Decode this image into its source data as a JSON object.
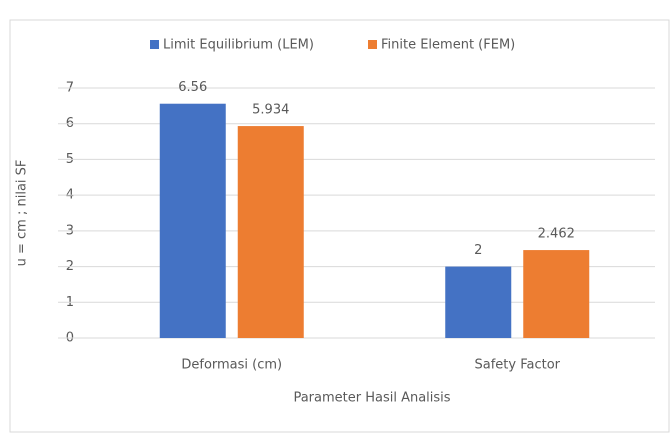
{
  "chart_data": {
    "type": "bar",
    "categories": [
      "Deformasi (cm)",
      "Safety Factor"
    ],
    "series": [
      {
        "name": "Limit Equilibrium (LEM)",
        "color": "#4472c4",
        "values": [
          6.56,
          2
        ]
      },
      {
        "name": "Finite Element (FEM)",
        "color": "#ed7d31",
        "values": [
          5.934,
          2.462
        ]
      }
    ],
    "xlabel": "Parameter Hasil Analisis",
    "ylabel": "u = cm ;  nilai SF",
    "ylim": [
      0,
      7
    ],
    "yticks": [
      0,
      1,
      2,
      3,
      4,
      5,
      6,
      7
    ],
    "grid": true,
    "legend": "top"
  }
}
